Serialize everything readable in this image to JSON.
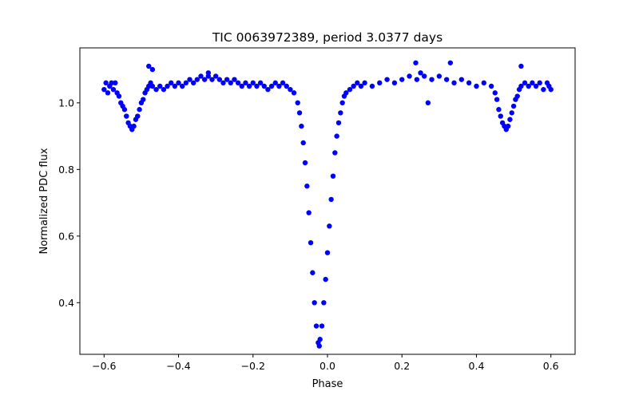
{
  "chart_data": {
    "type": "scatter",
    "title": "TIC 0063972389, period 3.0377 days",
    "xlabel": "Phase",
    "ylabel": "Normalized PDC flux",
    "xlim": [
      -0.665,
      0.665
    ],
    "ylim": [
      0.245,
      1.165
    ],
    "xticks": [
      -0.6,
      -0.4,
      -0.2,
      0.0,
      0.2,
      0.4,
      0.6
    ],
    "xtick_labels": [
      "−0.6",
      "−0.4",
      "−0.2",
      "0.0",
      "0.2",
      "0.4",
      "0.6"
    ],
    "yticks": [
      0.4,
      0.6,
      0.8,
      1.0
    ],
    "ytick_labels": [
      "0.4",
      "0.6",
      "0.8",
      "1.0"
    ],
    "grid": false,
    "legend": "none",
    "series": [
      {
        "color": "#0000ff",
        "points": [
          [
            -0.6,
            1.04
          ],
          [
            -0.595,
            1.06
          ],
          [
            -0.59,
            1.03
          ],
          [
            -0.585,
            1.05
          ],
          [
            -0.58,
            1.06
          ],
          [
            -0.575,
            1.04
          ],
          [
            -0.57,
            1.06
          ],
          [
            -0.565,
            1.03
          ],
          [
            -0.56,
            1.02
          ],
          [
            -0.555,
            1.0
          ],
          [
            -0.55,
            0.99
          ],
          [
            -0.545,
            0.98
          ],
          [
            -0.54,
            0.96
          ],
          [
            -0.535,
            0.94
          ],
          [
            -0.53,
            0.93
          ],
          [
            -0.525,
            0.92
          ],
          [
            -0.52,
            0.93
          ],
          [
            -0.515,
            0.95
          ],
          [
            -0.51,
            0.96
          ],
          [
            -0.505,
            0.98
          ],
          [
            -0.5,
            1.0
          ],
          [
            -0.495,
            1.01
          ],
          [
            -0.49,
            1.03
          ],
          [
            -0.485,
            1.04
          ],
          [
            -0.48,
            1.05
          ],
          [
            -0.475,
            1.06
          ],
          [
            -0.47,
            1.05
          ],
          [
            -0.46,
            1.04
          ],
          [
            -0.45,
            1.05
          ],
          [
            -0.44,
            1.04
          ],
          [
            -0.43,
            1.05
          ],
          [
            -0.42,
            1.06
          ],
          [
            -0.41,
            1.05
          ],
          [
            -0.4,
            1.06
          ],
          [
            -0.39,
            1.05
          ],
          [
            -0.38,
            1.06
          ],
          [
            -0.37,
            1.07
          ],
          [
            -0.36,
            1.06
          ],
          [
            -0.35,
            1.07
          ],
          [
            -0.34,
            1.08
          ],
          [
            -0.33,
            1.07
          ],
          [
            -0.32,
            1.08
          ],
          [
            -0.31,
            1.07
          ],
          [
            -0.3,
            1.08
          ],
          [
            -0.29,
            1.07
          ],
          [
            -0.28,
            1.06
          ],
          [
            -0.27,
            1.07
          ],
          [
            -0.26,
            1.06
          ],
          [
            -0.25,
            1.07
          ],
          [
            -0.24,
            1.06
          ],
          [
            -0.23,
            1.05
          ],
          [
            -0.22,
            1.06
          ],
          [
            -0.21,
            1.05
          ],
          [
            -0.2,
            1.06
          ],
          [
            -0.19,
            1.05
          ],
          [
            -0.18,
            1.06
          ],
          [
            -0.17,
            1.05
          ],
          [
            -0.16,
            1.04
          ],
          [
            -0.15,
            1.05
          ],
          [
            -0.14,
            1.06
          ],
          [
            -0.13,
            1.05
          ],
          [
            -0.12,
            1.06
          ],
          [
            -0.11,
            1.05
          ],
          [
            -0.1,
            1.04
          ],
          [
            -0.09,
            1.03
          ],
          [
            -0.08,
            1.0
          ],
          [
            -0.075,
            0.97
          ],
          [
            -0.07,
            0.93
          ],
          [
            -0.065,
            0.88
          ],
          [
            -0.06,
            0.82
          ],
          [
            -0.055,
            0.75
          ],
          [
            -0.05,
            0.67
          ],
          [
            -0.045,
            0.58
          ],
          [
            -0.04,
            0.49
          ],
          [
            -0.035,
            0.4
          ],
          [
            -0.03,
            0.33
          ],
          [
            -0.025,
            0.28
          ],
          [
            -0.022,
            0.27
          ],
          [
            -0.02,
            0.29
          ],
          [
            -0.015,
            0.33
          ],
          [
            -0.01,
            0.4
          ],
          [
            -0.005,
            0.47
          ],
          [
            0.0,
            0.55
          ],
          [
            0.005,
            0.63
          ],
          [
            0.01,
            0.71
          ],
          [
            0.015,
            0.78
          ],
          [
            0.02,
            0.85
          ],
          [
            0.025,
            0.9
          ],
          [
            0.03,
            0.94
          ],
          [
            0.035,
            0.97
          ],
          [
            0.04,
            1.0
          ],
          [
            0.045,
            1.02
          ],
          [
            0.05,
            1.03
          ],
          [
            0.06,
            1.04
          ],
          [
            0.07,
            1.05
          ],
          [
            0.08,
            1.06
          ],
          [
            0.09,
            1.05
          ],
          [
            0.1,
            1.06
          ],
          [
            0.12,
            1.05
          ],
          [
            0.14,
            1.06
          ],
          [
            0.16,
            1.07
          ],
          [
            0.18,
            1.06
          ],
          [
            0.2,
            1.07
          ],
          [
            0.22,
            1.08
          ],
          [
            0.24,
            1.07
          ],
          [
            0.26,
            1.08
          ],
          [
            0.28,
            1.07
          ],
          [
            0.3,
            1.08
          ],
          [
            0.32,
            1.07
          ],
          [
            0.34,
            1.06
          ],
          [
            0.36,
            1.07
          ],
          [
            0.38,
            1.06
          ],
          [
            0.4,
            1.05
          ],
          [
            0.42,
            1.06
          ],
          [
            0.44,
            1.05
          ],
          [
            0.45,
            1.03
          ],
          [
            0.455,
            1.01
          ],
          [
            0.46,
            0.98
          ],
          [
            0.465,
            0.96
          ],
          [
            0.47,
            0.94
          ],
          [
            0.475,
            0.93
          ],
          [
            0.48,
            0.92
          ],
          [
            0.485,
            0.93
          ],
          [
            0.49,
            0.95
          ],
          [
            0.495,
            0.97
          ],
          [
            0.5,
            0.99
          ],
          [
            0.505,
            1.01
          ],
          [
            0.51,
            1.02
          ],
          [
            0.515,
            1.04
          ],
          [
            0.52,
            1.05
          ],
          [
            0.53,
            1.06
          ],
          [
            0.54,
            1.05
          ],
          [
            0.55,
            1.06
          ],
          [
            0.56,
            1.05
          ],
          [
            0.57,
            1.06
          ],
          [
            0.58,
            1.04
          ],
          [
            0.59,
            1.06
          ],
          [
            0.595,
            1.05
          ],
          [
            0.6,
            1.04
          ],
          [
            -0.48,
            1.11
          ],
          [
            -0.47,
            1.1
          ],
          [
            0.237,
            1.12
          ],
          [
            0.33,
            1.12
          ],
          [
            0.27,
            1.0
          ],
          [
            0.52,
            1.11
          ],
          [
            -0.32,
            1.09
          ],
          [
            0.25,
            1.09
          ]
        ]
      }
    ]
  }
}
